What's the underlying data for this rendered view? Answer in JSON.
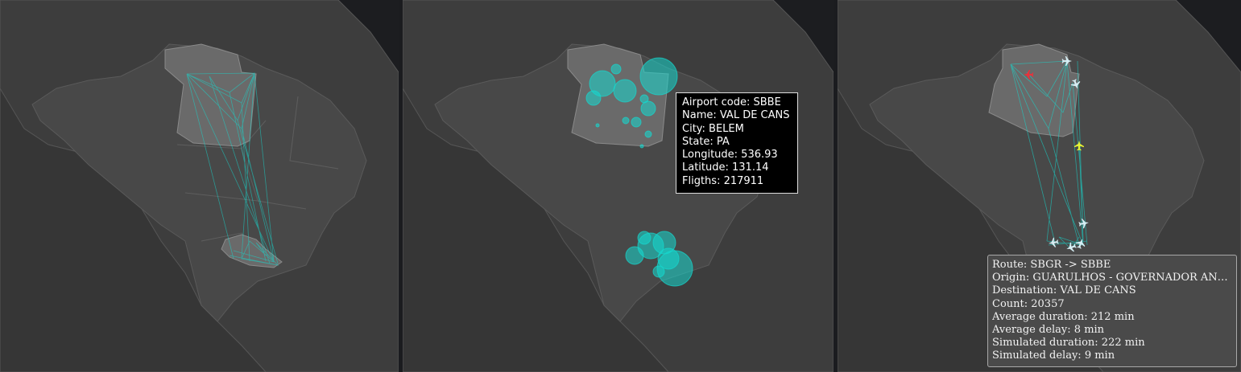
{
  "colors": {
    "background": "#1c1d20",
    "land": "#3d3d3d",
    "brazil": "#484848",
    "region": "#6a6a6a",
    "route": "#16d9cf",
    "plane": "#d6eef4",
    "plane_delayed": "#e8f233",
    "plane_alert": "#e8323c"
  },
  "icons": {
    "plane": "plane-icon"
  },
  "airport_tooltip": {
    "code": "Airport code: SBBE",
    "name": "Name: VAL DE CANS",
    "city": "City: BELEM",
    "state": "State: PA",
    "longitude": "Longitude: 536.93",
    "latitude": "Latitude: 131.14",
    "flights": "Fligths: 217911"
  },
  "route_tooltip": {
    "route": "Route: SBGR -> SBBE",
    "origin": "Origin: GUARULHOS - GOVERNADOR ANDRÉ FRANCO MONTORO",
    "destination": "Destination: VAL DE CANS",
    "count": "Count: 20357",
    "avg_duration": "Average duration: 212 min",
    "avg_delay": "Average delay: 8 min",
    "sim_duration": "Simulated duration: 222 min",
    "sim_delay": "Simulated delay: 9 min"
  }
}
